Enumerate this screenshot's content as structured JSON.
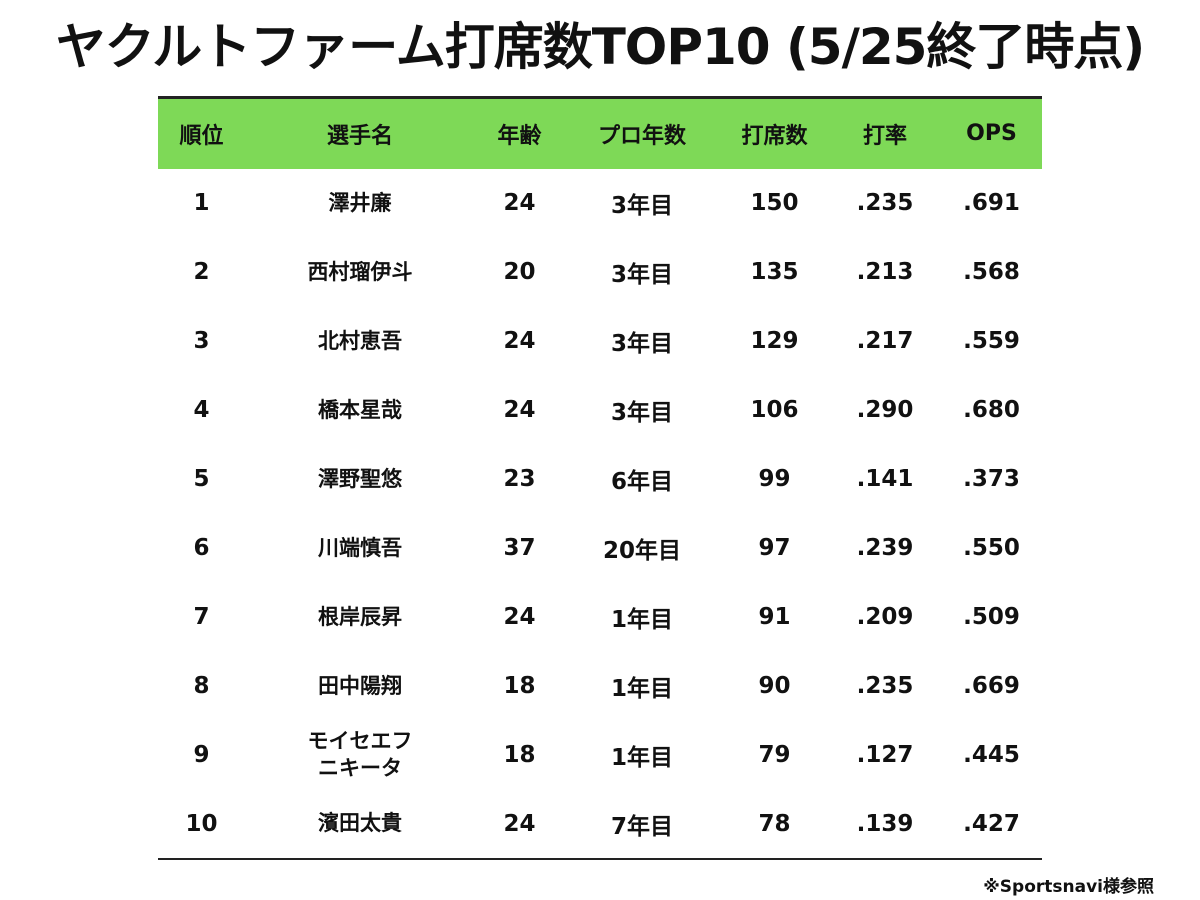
{
  "title": "ヤクルトファーム打席数TOP10 (5/25終了時点)",
  "colors": {
    "header_background": "#7ed957",
    "rule_line": "#222222"
  },
  "columns": [
    "順位",
    "選手名",
    "年齢",
    "プロ年数",
    "打席数",
    "打率",
    "OPS"
  ],
  "rows": [
    {
      "rank": "1",
      "name": "澤井廉",
      "age": "24",
      "years": "3年目",
      "pa": "150",
      "avg": ".235",
      "ops": ".691"
    },
    {
      "rank": "2",
      "name": "西村瑠伊斗",
      "age": "20",
      "years": "3年目",
      "pa": "135",
      "avg": ".213",
      "ops": ".568"
    },
    {
      "rank": "3",
      "name": "北村恵吾",
      "age": "24",
      "years": "3年目",
      "pa": "129",
      "avg": ".217",
      "ops": ".559"
    },
    {
      "rank": "4",
      "name": "橋本星哉",
      "age": "24",
      "years": "3年目",
      "pa": "106",
      "avg": ".290",
      "ops": ".680"
    },
    {
      "rank": "5",
      "name": "澤野聖悠",
      "age": "23",
      "years": "6年目",
      "pa": "99",
      "avg": ".141",
      "ops": ".373"
    },
    {
      "rank": "6",
      "name": "川端慎吾",
      "age": "37",
      "years": "20年目",
      "pa": "97",
      "avg": ".239",
      "ops": ".550"
    },
    {
      "rank": "7",
      "name": "根岸辰昇",
      "age": "24",
      "years": "1年目",
      "pa": "91",
      "avg": ".209",
      "ops": ".509"
    },
    {
      "rank": "8",
      "name": "田中陽翔",
      "age": "18",
      "years": "1年目",
      "pa": "90",
      "avg": ".235",
      "ops": ".669"
    },
    {
      "rank": "9",
      "name": "モイセエフ\nニキータ",
      "age": "18",
      "years": "1年目",
      "pa": "79",
      "avg": ".127",
      "ops": ".445"
    },
    {
      "rank": "10",
      "name": "濱田太貴",
      "age": "24",
      "years": "7年目",
      "pa": "78",
      "avg": ".139",
      "ops": ".427"
    }
  ],
  "source": "※Sportsnavi様参照"
}
